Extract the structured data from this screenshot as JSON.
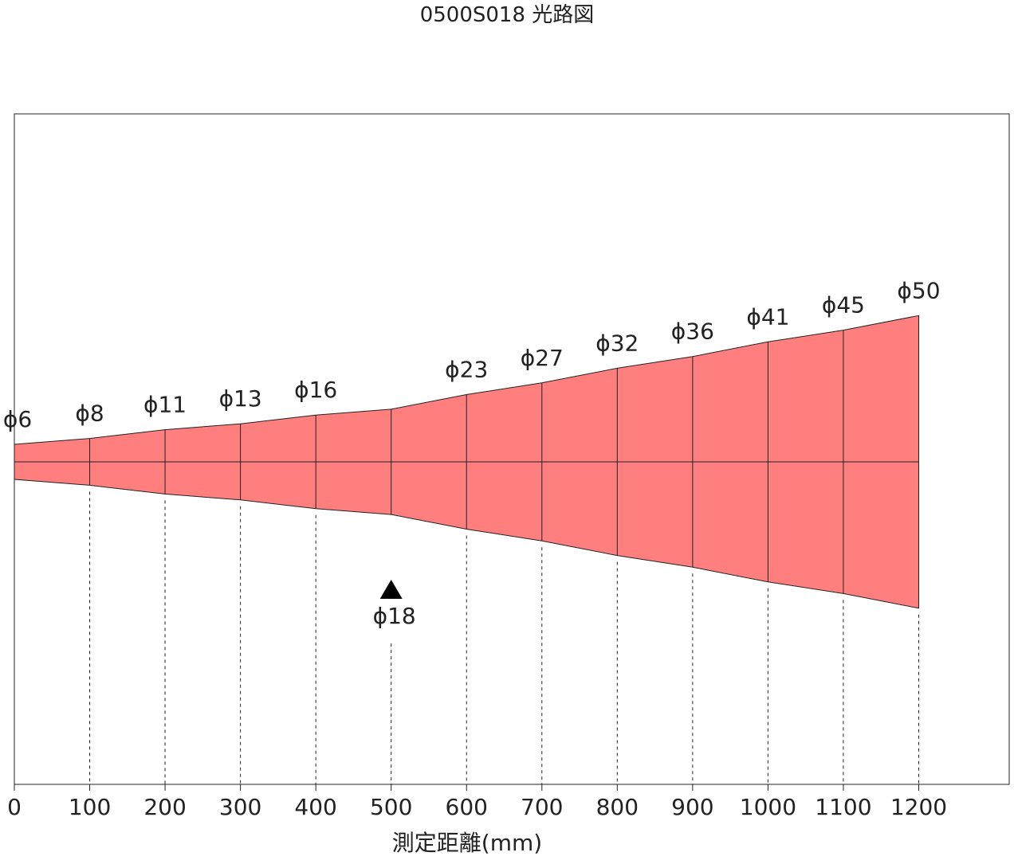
{
  "title": "0500S018 光路図",
  "beam_color": "#ff7f7f",
  "marker": {
    "distance": 500,
    "label": "ϕ18"
  },
  "chart_data": {
    "type": "area",
    "title": "0500S018 光路図",
    "xlabel": "測定距離(mm)",
    "ylabel": "",
    "xlim": [
      0,
      1320
    ],
    "ylim": [
      -25,
      25
    ],
    "x": [
      0,
      100,
      200,
      300,
      400,
      500,
      600,
      700,
      800,
      900,
      1000,
      1100,
      1200
    ],
    "diameters": [
      6,
      8,
      11,
      13,
      16,
      18,
      23,
      27,
      32,
      36,
      41,
      45,
      50
    ],
    "diameter_labels": [
      "ϕ6",
      "ϕ8",
      "ϕ11",
      "ϕ13",
      "ϕ16",
      "ϕ18",
      "ϕ23",
      "ϕ27",
      "ϕ32",
      "ϕ36",
      "ϕ41",
      "ϕ45",
      "ϕ50"
    ],
    "tick_labels": [
      "0",
      "100",
      "200",
      "300",
      "400",
      "500",
      "600",
      "700",
      "800",
      "900",
      "1000",
      "1100",
      "1200"
    ],
    "grid": false
  }
}
